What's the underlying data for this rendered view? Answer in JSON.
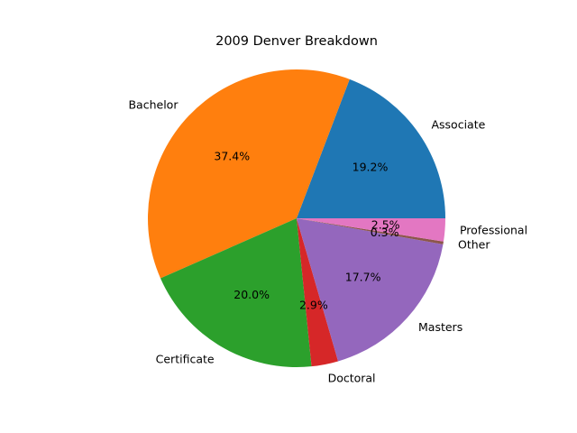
{
  "chart_data": {
    "type": "pie",
    "title": "2009 Denver Breakdown",
    "slices": [
      {
        "label": "Associate",
        "value": 19.2,
        "pct_label": "19.2%",
        "color": "#1f77b4"
      },
      {
        "label": "Bachelor",
        "value": 37.4,
        "pct_label": "37.4%",
        "color": "#ff7f0e"
      },
      {
        "label": "Certificate",
        "value": 20.0,
        "pct_label": "20.0%",
        "color": "#2ca02c"
      },
      {
        "label": "Doctoral",
        "value": 2.9,
        "pct_label": "2.9%",
        "color": "#d62728"
      },
      {
        "label": "Masters",
        "value": 17.7,
        "pct_label": "17.7%",
        "color": "#9467bd"
      },
      {
        "label": "Other",
        "value": 0.3,
        "pct_label": "0.3%",
        "color": "#8c564b"
      },
      {
        "label": "Professional",
        "value": 2.5,
        "pct_label": "2.5%",
        "color": "#e377c2"
      }
    ],
    "start_angle_deg": 0,
    "direction": "counterclockwise",
    "legend": "none"
  }
}
